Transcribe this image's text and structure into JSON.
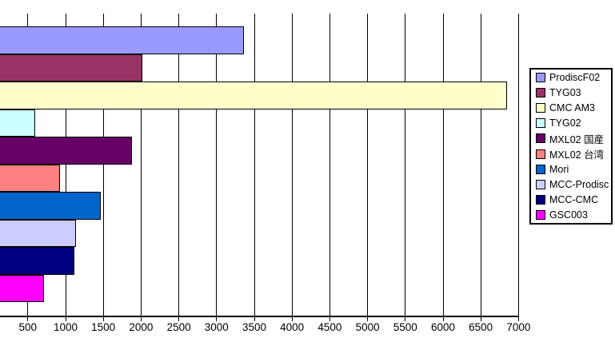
{
  "chart_data": {
    "type": "bar",
    "orientation": "horizontal",
    "title": "",
    "xlabel": "",
    "ylabel": "",
    "series": [
      {
        "label": "ProdiscF02",
        "value": 3360,
        "color": "#9999FF"
      },
      {
        "label": "TYG03",
        "value": 2020,
        "color": "#993366"
      },
      {
        "label": "CMC AM3",
        "value": 6850,
        "color": "#FFFFCC"
      },
      {
        "label": "TYG02",
        "value": 600,
        "color": "#CCFFFF"
      },
      {
        "label": "MXL02 国産",
        "value": 1880,
        "color": "#660066"
      },
      {
        "label": "MXL02 台湾",
        "value": 930,
        "color": "#FF8080"
      },
      {
        "label": "Mori",
        "value": 1470,
        "color": "#0066CC"
      },
      {
        "label": "MCC-Prodisc",
        "value": 1140,
        "color": "#CCCCFF"
      },
      {
        "label": "MCC-CMC",
        "value": 1120,
        "color": "#000080"
      },
      {
        "label": "GSC003",
        "value": 715,
        "color": "#FF00FF"
      }
    ],
    "x_axis": {
      "min": 0,
      "max": 7000,
      "tick_step": 500,
      "tick_labels": [
        "500",
        "1000",
        "1500",
        "2000",
        "2500",
        "3000",
        "3500",
        "4000",
        "4500",
        "5000",
        "5500",
        "6000",
        "6500",
        "7000"
      ],
      "note": "value axis zero point cropped off left edge of image"
    },
    "grid": "vertical major gridlines, black",
    "legend": {
      "position": "right",
      "border_color": "#000000",
      "background": "#FFFFFF"
    },
    "colors": {
      "gridline": "#000000",
      "axis": "#000000",
      "bar_border": "#000000",
      "background": "#FFFFFF"
    }
  }
}
